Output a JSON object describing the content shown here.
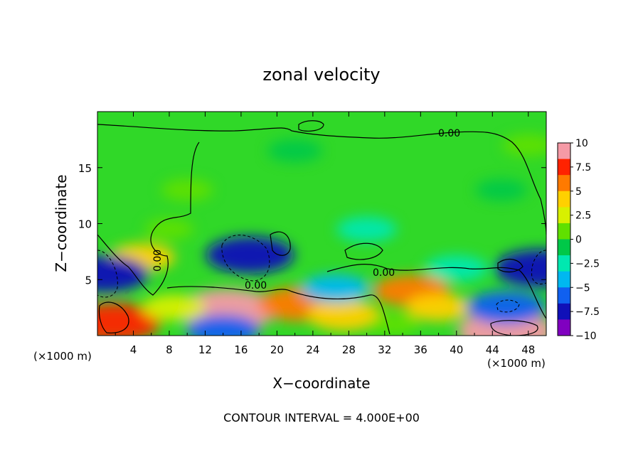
{
  "chart_data": {
    "type": "heatmap",
    "title": "zonal velocity",
    "xlabel": "X−coordinate",
    "ylabel": "Z−coordinate",
    "x_unit_left": "(×1000 m)",
    "x_unit_right": "(×1000 m)",
    "footer": "CONTOUR INTERVAL = 4.000E+00",
    "xlim": [
      0,
      50
    ],
    "ylim": [
      0,
      20
    ],
    "x_ticks": [
      "4",
      "8",
      "12",
      "16",
      "20",
      "24",
      "28",
      "32",
      "36",
      "40",
      "44",
      "48"
    ],
    "y_ticks": [
      "5",
      "10",
      "15"
    ],
    "contour_labels": [
      "0.00",
      "0.00",
      "0.00",
      "0.00"
    ],
    "colorbar": {
      "min": -10,
      "max": 10,
      "tick_labels": [
        "10",
        "7.5",
        "5",
        "2.5",
        "0",
        "−2.5",
        "−5",
        "−7.5",
        "−10"
      ],
      "colors": [
        "#f59aa6",
        "#ff2200",
        "#ff7a00",
        "#ffd000",
        "#d8f000",
        "#60e000",
        "#00c848",
        "#00e8b0",
        "#00b8f0",
        "#1060f0",
        "#1010b8",
        "#8000c0"
      ]
    },
    "features": [
      {
        "x": 14.5,
        "z": 2.3,
        "value": 9.5
      },
      {
        "x": 2.0,
        "z": 1.2,
        "value": 8.0
      },
      {
        "x": 45.5,
        "z": 0.4,
        "value": 9.0
      },
      {
        "x": 22.5,
        "z": 2.8,
        "value": 6.5
      },
      {
        "x": 27.5,
        "z": 1.8,
        "value": 5.0
      },
      {
        "x": 35.0,
        "z": 4.0,
        "value": 5.5
      },
      {
        "x": 38.0,
        "z": 2.5,
        "value": 3.5
      },
      {
        "x": 8.5,
        "z": 2.5,
        "value": 3.0
      },
      {
        "x": 5.0,
        "z": 7.0,
        "value": 3.5
      },
      {
        "x": 17.0,
        "z": 7.2,
        "value": -7.5
      },
      {
        "x": 0.8,
        "z": 5.5,
        "value": -7.5
      },
      {
        "x": 49.3,
        "z": 6.0,
        "value": -8.0
      },
      {
        "x": 45.5,
        "z": 2.5,
        "value": -6.0
      },
      {
        "x": 14.0,
        "z": 0.5,
        "value": -5.0
      },
      {
        "x": 26.5,
        "z": 4.2,
        "value": -4.0
      },
      {
        "x": 40.0,
        "z": 6.0,
        "value": -3.0
      },
      {
        "x": 30.0,
        "z": 9.5,
        "value": -2.5
      },
      {
        "x": 22.0,
        "z": 16.5,
        "value": -1.5
      },
      {
        "x": 45.0,
        "z": 13.0,
        "value": -1.0
      },
      {
        "x": 10.0,
        "z": 13.0,
        "value": 1.0
      },
      {
        "x": 8.0,
        "z": 9.5,
        "value": 0.5
      },
      {
        "x": 33.0,
        "z": 1.0,
        "value": 0.5
      },
      {
        "x": 48.0,
        "z": 17.0,
        "value": 1.0
      }
    ],
    "grid": false
  }
}
